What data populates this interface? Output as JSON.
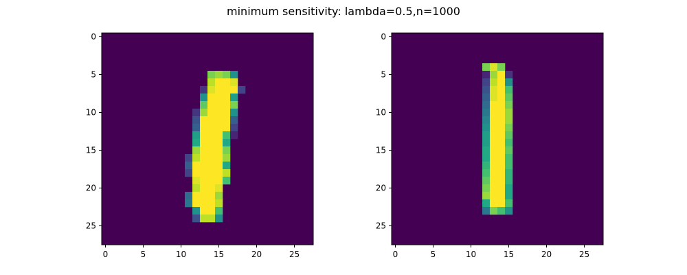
{
  "title": "minimum sensitivity: lambda=0.5,n=1000",
  "colors": {
    "background": "#440154",
    "colormap": "viridis"
  },
  "chart_data": [
    {
      "type": "heatmap",
      "title": "",
      "xlabel": "",
      "ylabel": "",
      "grid": false,
      "xlim": [
        -0.5,
        27.5
      ],
      "ylim": [
        27.5,
        -0.5
      ],
      "xticks": [
        0,
        5,
        10,
        15,
        20,
        25
      ],
      "yticks": [
        0,
        5,
        10,
        15,
        20,
        25
      ],
      "shape": [
        28,
        28
      ],
      "value_range": [
        0,
        1
      ],
      "nonzero_cells": [
        [
          5,
          14,
          0.8
        ],
        [
          5,
          15,
          0.85
        ],
        [
          5,
          16,
          0.8
        ],
        [
          5,
          17,
          0.5
        ],
        [
          6,
          14,
          0.9
        ],
        [
          6,
          15,
          1
        ],
        [
          6,
          16,
          1
        ],
        [
          6,
          17,
          0.95
        ],
        [
          7,
          13,
          0.15
        ],
        [
          7,
          14,
          0.95
        ],
        [
          7,
          15,
          1
        ],
        [
          7,
          16,
          1
        ],
        [
          7,
          17,
          1
        ],
        [
          7,
          18,
          0.2
        ],
        [
          8,
          13,
          0.5
        ],
        [
          8,
          14,
          1
        ],
        [
          8,
          15,
          1
        ],
        [
          8,
          16,
          1
        ],
        [
          8,
          17,
          0.55
        ],
        [
          9,
          13,
          0.75
        ],
        [
          9,
          14,
          1
        ],
        [
          9,
          15,
          1
        ],
        [
          9,
          16,
          1
        ],
        [
          9,
          17,
          0.8
        ],
        [
          10,
          12,
          0.15
        ],
        [
          10,
          13,
          0.85
        ],
        [
          10,
          14,
          1
        ],
        [
          10,
          15,
          1
        ],
        [
          10,
          16,
          1
        ],
        [
          10,
          17,
          0.5
        ],
        [
          11,
          12,
          0.25
        ],
        [
          11,
          13,
          1
        ],
        [
          11,
          14,
          1
        ],
        [
          11,
          15,
          1
        ],
        [
          11,
          16,
          1
        ],
        [
          11,
          17,
          0.3
        ],
        [
          12,
          12,
          0.3
        ],
        [
          12,
          13,
          1
        ],
        [
          12,
          14,
          1
        ],
        [
          12,
          15,
          1
        ],
        [
          12,
          16,
          1
        ],
        [
          12,
          17,
          0.2
        ],
        [
          13,
          12,
          0.55
        ],
        [
          13,
          13,
          1
        ],
        [
          13,
          14,
          1
        ],
        [
          13,
          15,
          1
        ],
        [
          13,
          16,
          0.7
        ],
        [
          13,
          17,
          0.1
        ],
        [
          14,
          12,
          0.6
        ],
        [
          14,
          13,
          1
        ],
        [
          14,
          14,
          1
        ],
        [
          14,
          15,
          1
        ],
        [
          14,
          16,
          0.6
        ],
        [
          15,
          12,
          0.85
        ],
        [
          15,
          13,
          1
        ],
        [
          15,
          14,
          1
        ],
        [
          15,
          15,
          1
        ],
        [
          15,
          16,
          0.8
        ],
        [
          16,
          11,
          0.2
        ],
        [
          16,
          12,
          0.9
        ],
        [
          16,
          13,
          1
        ],
        [
          16,
          14,
          1
        ],
        [
          16,
          15,
          1
        ],
        [
          16,
          16,
          0.85
        ],
        [
          17,
          11,
          0.3
        ],
        [
          17,
          12,
          1
        ],
        [
          17,
          13,
          1
        ],
        [
          17,
          14,
          1
        ],
        [
          17,
          15,
          1
        ],
        [
          17,
          16,
          0.6
        ],
        [
          18,
          11,
          0.2
        ],
        [
          18,
          12,
          1
        ],
        [
          18,
          13,
          1
        ],
        [
          18,
          14,
          1
        ],
        [
          18,
          15,
          1
        ],
        [
          18,
          16,
          0.9
        ],
        [
          19,
          12,
          0.95
        ],
        [
          19,
          13,
          1
        ],
        [
          19,
          14,
          1
        ],
        [
          19,
          15,
          1
        ],
        [
          19,
          16,
          0.7
        ],
        [
          20,
          12,
          0.9
        ],
        [
          20,
          13,
          1
        ],
        [
          20,
          14,
          1
        ],
        [
          20,
          15,
          0.95
        ],
        [
          21,
          11,
          0.35
        ],
        [
          21,
          12,
          1
        ],
        [
          21,
          13,
          1
        ],
        [
          21,
          14,
          1
        ],
        [
          21,
          15,
          0.85
        ],
        [
          22,
          11,
          0.4
        ],
        [
          22,
          12,
          1
        ],
        [
          22,
          13,
          1
        ],
        [
          22,
          14,
          1
        ],
        [
          22,
          15,
          0.9
        ],
        [
          23,
          12,
          0.5
        ],
        [
          23,
          13,
          1
        ],
        [
          23,
          14,
          1
        ],
        [
          23,
          15,
          0.7
        ],
        [
          24,
          12,
          0.25
        ],
        [
          24,
          13,
          0.9
        ],
        [
          24,
          14,
          0.9
        ],
        [
          24,
          15,
          0.5
        ]
      ]
    },
    {
      "type": "heatmap",
      "title": "",
      "xlabel": "",
      "ylabel": "",
      "grid": false,
      "xlim": [
        -0.5,
        27.5
      ],
      "ylim": [
        27.5,
        -0.5
      ],
      "xticks": [
        0,
        5,
        10,
        15,
        20,
        25
      ],
      "yticks": [
        0,
        5,
        10,
        15,
        20,
        25
      ],
      "shape": [
        28,
        28
      ],
      "value_range": [
        0,
        1
      ],
      "nonzero_cells": [
        [
          4,
          12,
          0.8
        ],
        [
          4,
          13,
          0.95
        ],
        [
          4,
          14,
          0.8
        ],
        [
          5,
          12,
          0.1
        ],
        [
          5,
          13,
          0.85
        ],
        [
          5,
          14,
          1
        ],
        [
          5,
          15,
          0.15
        ],
        [
          6,
          12,
          0.2
        ],
        [
          6,
          13,
          0.9
        ],
        [
          6,
          14,
          1
        ],
        [
          6,
          15,
          0.5
        ],
        [
          7,
          12,
          0.25
        ],
        [
          7,
          13,
          0.95
        ],
        [
          7,
          14,
          1
        ],
        [
          7,
          15,
          0.7
        ],
        [
          8,
          12,
          0.3
        ],
        [
          8,
          13,
          0.95
        ],
        [
          8,
          14,
          1
        ],
        [
          8,
          15,
          0.75
        ],
        [
          9,
          12,
          0.35
        ],
        [
          9,
          13,
          1
        ],
        [
          9,
          14,
          1
        ],
        [
          9,
          15,
          0.8
        ],
        [
          10,
          12,
          0.4
        ],
        [
          10,
          13,
          1
        ],
        [
          10,
          14,
          1
        ],
        [
          10,
          15,
          0.85
        ],
        [
          11,
          12,
          0.45
        ],
        [
          11,
          13,
          1
        ],
        [
          11,
          14,
          1
        ],
        [
          11,
          15,
          0.85
        ],
        [
          12,
          12,
          0.5
        ],
        [
          12,
          13,
          1
        ],
        [
          12,
          14,
          1
        ],
        [
          12,
          15,
          0.8
        ],
        [
          13,
          12,
          0.55
        ],
        [
          13,
          13,
          1
        ],
        [
          13,
          14,
          1
        ],
        [
          13,
          15,
          0.75
        ],
        [
          14,
          12,
          0.55
        ],
        [
          14,
          13,
          1
        ],
        [
          14,
          14,
          1
        ],
        [
          14,
          15,
          0.7
        ],
        [
          15,
          12,
          0.6
        ],
        [
          15,
          13,
          1
        ],
        [
          15,
          14,
          1
        ],
        [
          15,
          15,
          0.75
        ],
        [
          16,
          12,
          0.6
        ],
        [
          16,
          13,
          1
        ],
        [
          16,
          14,
          1
        ],
        [
          16,
          15,
          0.7
        ],
        [
          17,
          12,
          0.65
        ],
        [
          17,
          13,
          1
        ],
        [
          17,
          14,
          1
        ],
        [
          17,
          15,
          0.7
        ],
        [
          18,
          12,
          0.7
        ],
        [
          18,
          13,
          1
        ],
        [
          18,
          14,
          1
        ],
        [
          18,
          15,
          0.65
        ],
        [
          19,
          12,
          0.75
        ],
        [
          19,
          13,
          1
        ],
        [
          19,
          14,
          1
        ],
        [
          19,
          15,
          0.65
        ],
        [
          20,
          12,
          0.8
        ],
        [
          20,
          13,
          1
        ],
        [
          20,
          14,
          1
        ],
        [
          20,
          15,
          0.6
        ],
        [
          21,
          12,
          0.85
        ],
        [
          21,
          13,
          1
        ],
        [
          21,
          14,
          1
        ],
        [
          21,
          15,
          0.6
        ],
        [
          22,
          12,
          0.6
        ],
        [
          22,
          13,
          1
        ],
        [
          22,
          14,
          1
        ],
        [
          22,
          15,
          0.7
        ],
        [
          23,
          12,
          0.4
        ],
        [
          23,
          13,
          0.8
        ],
        [
          23,
          14,
          0.7
        ],
        [
          23,
          15,
          0.5
        ]
      ]
    }
  ]
}
